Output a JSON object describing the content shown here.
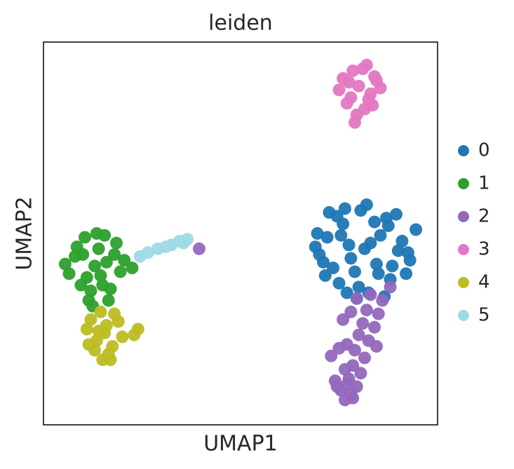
{
  "chart_data": {
    "type": "scatter",
    "title": "leiden",
    "x_label": "UMAP1",
    "y_label": "UMAP2",
    "xlim": [
      -5,
      15
    ],
    "ylim": [
      -5,
      15
    ],
    "legend": "right",
    "series": [
      {
        "name": "0",
        "color": "#1f77b4",
        "x": [
          11.3,
          10.2,
          12.4,
          9.4,
          13.2,
          10.8,
          11.9,
          9.0,
          13.6,
          10.0,
          12.6,
          11.1,
          8.9,
          13.9,
          10.5,
          12.1,
          9.7,
          12.9,
          11.5,
          10.9,
          9.3,
          13.4,
          11.8,
          10.3,
          12.3,
          9.9,
          13.0,
          11.0,
          10.6,
          12.7,
          9.5,
          11.6,
          13.5,
          10.1,
          12.0,
          8.8,
          11.4,
          12.5,
          10.4,
          9.2
        ],
        "y": [
          4.2,
          5.5,
          5.8,
          4.8,
          4.6,
          3.0,
          3.4,
          3.9,
          3.6,
          2.4,
          2.6,
          6.2,
          5.0,
          5.2,
          4.4,
          4.9,
          3.2,
          6.0,
          1.9,
          1.6,
          2.8,
          2.9,
          5.6,
          6.3,
          1.7,
          5.9,
          4.1,
          2.2,
          3.7,
          3.3,
          6.1,
          4.5,
          4.0,
          4.9,
          2.9,
          4.3,
          6.5,
          5.4,
          1.9,
          3.5
        ]
      },
      {
        "name": "1",
        "color": "#2ca02c",
        "x": [
          -2.4,
          -3.4,
          -1.4,
          -2.9,
          -1.9,
          -3.7,
          -1.1,
          -2.6,
          -2.0,
          -3.1,
          -1.6,
          -2.2,
          -3.9,
          -0.9,
          -2.7,
          -1.7,
          -3.3,
          -2.3,
          -1.3,
          -2.8,
          -0.5,
          -2.1,
          -3.0,
          -1.8,
          -2.5
        ],
        "y": [
          3.3,
          3.8,
          3.9,
          4.8,
          4.9,
          2.9,
          3.0,
          2.0,
          2.3,
          2.3,
          2.1,
          4.2,
          3.4,
          3.6,
          1.5,
          1.5,
          4.3,
          5.0,
          4.5,
          2.7,
          3.2,
          2.8,
          3.9,
          3.5,
          1.2
        ]
      },
      {
        "name": "2",
        "color": "#9467bd",
        "x": [
          11.6,
          12.2,
          10.9,
          11.4,
          12.0,
          10.6,
          11.2,
          11.8,
          10.2,
          11.0,
          11.5,
          10.4,
          10.8,
          11.3,
          9.6,
          10.0,
          10.7,
          11.1,
          10.3,
          9.8,
          10.5,
          10.9,
          10.1,
          10.6,
          10.3,
          9.9,
          10.7,
          10.4,
          12.6,
          11.9,
          2.9
        ],
        "y": [
          1.8,
          1.5,
          1.6,
          1.0,
          0.8,
          0.9,
          0.3,
          0.1,
          0.5,
          -0.3,
          -0.6,
          -0.8,
          -1.1,
          -1.5,
          -1.4,
          -1.0,
          -1.9,
          -2.3,
          -2.1,
          -2.7,
          -2.6,
          -3.0,
          -3.2,
          -3.4,
          -3.7,
          -3.0,
          -3.6,
          -2.9,
          2.2,
          -0.9,
          4.2
        ]
      },
      {
        "name": "3",
        "color": "#e377c2",
        "x": [
          11.0,
          10.2,
          11.8,
          10.6,
          11.5,
          12.1,
          10.0,
          11.2,
          10.7,
          11.9,
          11.3,
          10.4,
          11.6,
          10.9,
          11.4,
          10.8,
          11.7,
          10.5
        ],
        "y": [
          12.7,
          13.1,
          13.2,
          12.1,
          12.0,
          12.6,
          12.5,
          13.6,
          13.5,
          13.0,
          11.5,
          11.8,
          12.3,
          11.2,
          13.8,
          10.8,
          11.7,
          12.9
        ]
      },
      {
        "name": "4",
        "color": "#bcbd22",
        "x": [
          -1.9,
          -2.6,
          -1.2,
          -2.3,
          -1.5,
          -2.1,
          -1.7,
          -2.8,
          -1.0,
          -2.0,
          -1.4,
          -2.4,
          -1.8,
          -0.2,
          -0.4,
          -2.2,
          -1.6,
          -2.7
        ],
        "y": [
          -0.2,
          0.5,
          0.4,
          -0.6,
          -0.9,
          0.9,
          -1.3,
          0.0,
          -0.4,
          -1.6,
          0.8,
          -1.1,
          0.2,
          0.0,
          -0.3,
          -0.1,
          -1.6,
          -0.8
        ]
      },
      {
        "name": "5",
        "color": "#9edae5",
        "x": [
          -0.1,
          0.3,
          0.8,
          1.2,
          1.5,
          1.9,
          2.1,
          2.3
        ],
        "y": [
          3.8,
          4.0,
          4.2,
          4.3,
          4.4,
          4.6,
          4.5,
          4.7
        ]
      }
    ]
  }
}
